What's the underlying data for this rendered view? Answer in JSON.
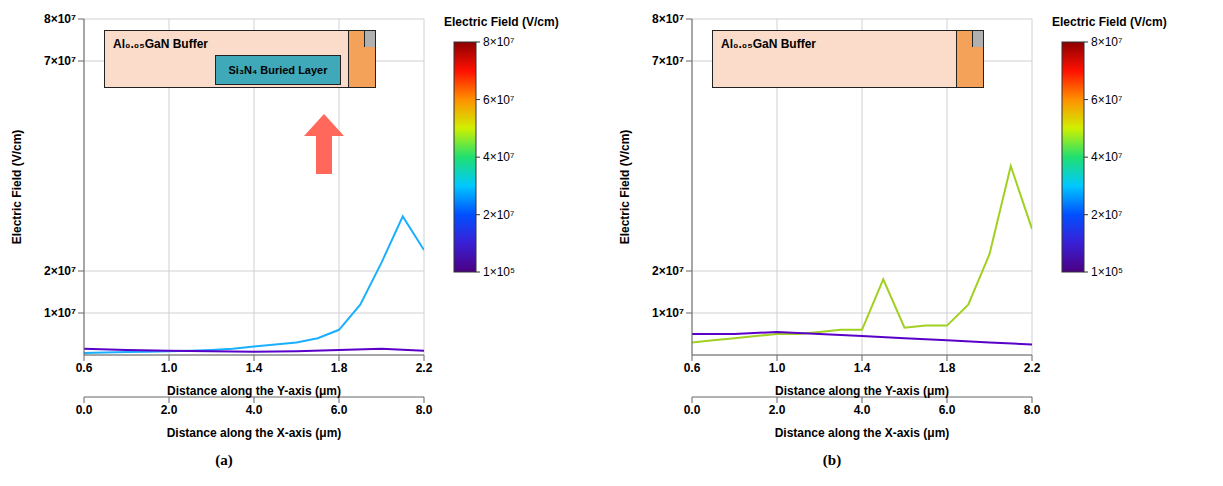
{
  "chart_data": [
    {
      "type": "line",
      "title": "(a)",
      "xlabel": "Distance along the X-axis (μm)",
      "x": [
        0,
        0.5,
        1,
        1.5,
        2,
        2.5,
        3,
        3.5,
        4,
        4.5,
        5,
        5.5,
        6,
        6.5,
        7,
        7.5,
        8
      ],
      "xlim": [
        0,
        8
      ],
      "xticks": [
        {
          "value": 0,
          "label": "0.0"
        },
        {
          "value": 2,
          "label": "2.0"
        },
        {
          "value": 4,
          "label": "4.0"
        },
        {
          "value": 6,
          "label": "6.0"
        },
        {
          "value": 8,
          "label": "8.0"
        }
      ],
      "x2label": "Distance along the Y-axis (μm)",
      "x2lim": [
        0.6,
        2.2
      ],
      "x2ticks": [
        0.6,
        {
          "value": 1,
          "label": "1.0"
        },
        1.4,
        1.8,
        2.2
      ],
      "ylabel": "Electric Field (V/cm)",
      "ylim": [
        0,
        80000000
      ],
      "yticks": [
        {
          "value": 10000000,
          "label": "1×10⁷"
        },
        {
          "value": 20000000,
          "label": "2×10⁷"
        },
        {
          "value": 70000000,
          "label": "7×10⁷"
        },
        {
          "value": 80000000,
          "label": "8×10⁷"
        }
      ],
      "grid": true,
      "series": [
        {
          "color": "#1ab0ff",
          "values": [
            500000,
            600000,
            700000,
            800000,
            900000,
            1000000,
            1200000,
            1500000,
            2000000,
            2500000,
            3000000,
            4000000,
            6000000,
            12000000,
            22000000,
            33000000,
            25000000
          ]
        },
        {
          "color": "#5a00c8",
          "axis": "x2",
          "x": [
            0.6,
            0.8,
            1,
            1.2,
            1.4,
            1.6,
            1.8,
            2,
            2.2
          ],
          "values": [
            1500000,
            1200000,
            1000000,
            900000,
            800000,
            900000,
            1200000,
            1500000,
            1000000
          ]
        }
      ],
      "color_bar": {
        "label": "Electric Field (V/cm)",
        "range": [
          100000,
          80000000
        ],
        "ticks": [
          {
            "value": 100000,
            "label": "1×10⁵"
          },
          {
            "value": 20000000,
            "label": "2×10⁷"
          },
          {
            "value": 40000000,
            "label": "4×10⁷"
          },
          {
            "value": 60000000,
            "label": "6×10⁷"
          },
          {
            "value": 80000000,
            "label": "8×10⁷"
          }
        ]
      },
      "annotations": [
        "Al₀.₀₅GaN Buffer",
        "Si₃N₄ Buried Layer"
      ]
    },
    {
      "type": "line",
      "title": "(b)",
      "xlabel": "Distance along the X-axis (μm)",
      "x": [
        0,
        0.5,
        1,
        1.5,
        2,
        2.5,
        3,
        3.5,
        4,
        4.5,
        5,
        5.5,
        6,
        6.5,
        7,
        7.5,
        8
      ],
      "xlim": [
        0,
        8
      ],
      "xticks": [
        {
          "value": 0,
          "label": "0.0"
        },
        {
          "value": 2,
          "label": "2.0"
        },
        {
          "value": 4,
          "label": "4.0"
        },
        {
          "value": 6,
          "label": "6.0"
        },
        {
          "value": 8,
          "label": "8.0"
        }
      ],
      "x2label": "Distance along the Y-axis (μm)",
      "x2lim": [
        0.6,
        2.2
      ],
      "x2ticks": [
        0.6,
        {
          "value": 1,
          "label": "1.0"
        },
        1.4,
        1.8,
        2.2
      ],
      "ylabel": "Electric Field (V/cm)",
      "ylim": [
        0,
        80000000
      ],
      "yticks": [
        {
          "value": 10000000,
          "label": "1×10⁷"
        },
        {
          "value": 20000000,
          "label": "2×10⁷"
        },
        {
          "value": 70000000,
          "label": "7×10⁷"
        },
        {
          "value": 80000000,
          "label": "8×10⁷"
        }
      ],
      "grid": true,
      "series": [
        {
          "color": "#a0d020",
          "values": [
            3000000,
            3500000,
            4000000,
            4500000,
            5000000,
            5000000,
            5500000,
            6000000,
            6000000,
            18000000,
            6500000,
            7000000,
            7000000,
            12000000,
            24000000,
            45000000,
            30000000
          ]
        },
        {
          "color": "#5a00c8",
          "axis": "x2",
          "x": [
            0.6,
            0.8,
            1,
            1.2,
            1.4,
            1.6,
            1.8,
            2,
            2.2
          ],
          "values": [
            5000000,
            5000000,
            5500000,
            5000000,
            4500000,
            4000000,
            3500000,
            3000000,
            2500000
          ]
        }
      ],
      "color_bar": {
        "label": "Electric Field (V/cm)",
        "range": [
          100000,
          80000000
        ],
        "ticks": [
          {
            "value": 100000,
            "label": "1×10⁵"
          },
          {
            "value": 20000000,
            "label": "2×10⁷"
          },
          {
            "value": 40000000,
            "label": "4×10⁷"
          },
          {
            "value": 60000000,
            "label": "6×10⁷"
          },
          {
            "value": 80000000,
            "label": "8×10⁷"
          }
        ]
      },
      "annotations": [
        "Al₀.₀₅GaN Buffer"
      ]
    }
  ]
}
